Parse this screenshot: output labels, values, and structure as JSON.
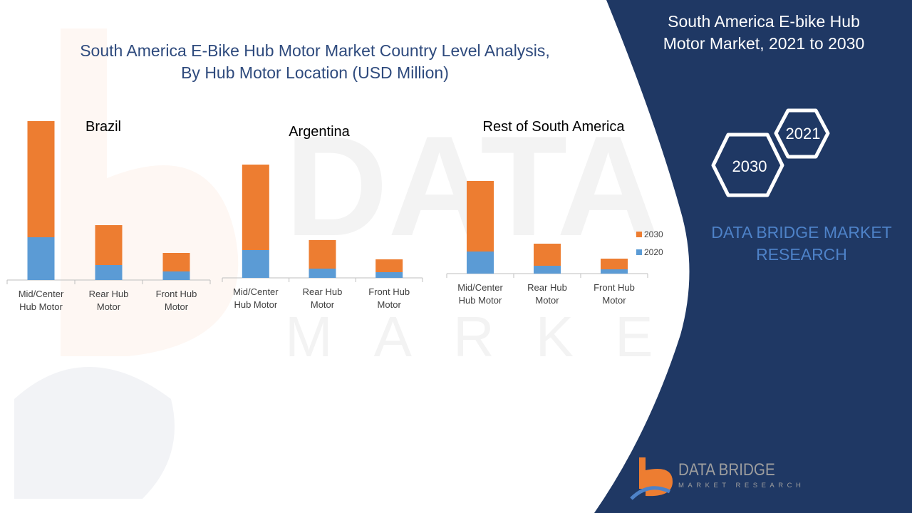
{
  "page": {
    "title_line1": "South America E-Bike Hub Motor Market Country Level Analysis,",
    "title_line2": "By Hub Motor Location (USD Million)",
    "side_title_line1": "South America E-bike Hub",
    "side_title_line2": "Motor Market, 2021 to 2030",
    "hex_labels": [
      "2021",
      "2030"
    ],
    "brand_line1": "DATA BRIDGE MARKET",
    "brand_line2": "RESEARCH",
    "logo_name": "DATA BRIDGE",
    "logo_sub": "MARKET RESEARCH"
  },
  "colors": {
    "series_2020": "#5B9BD5",
    "series_2030": "#ED7D31",
    "panel": "#1F3864",
    "title": "#2E4A7D",
    "axis": "#BFBFBF"
  },
  "chart_data": [
    {
      "type": "bar",
      "stacked": true,
      "title": "Brazil",
      "categories": [
        [
          "Mid/Center",
          "Hub Motor"
        ],
        [
          "Rear Hub",
          "Motor"
        ],
        [
          "Front Hub",
          "Motor"
        ]
      ],
      "series": [
        {
          "name": "2020",
          "values": [
            60,
            21,
            12
          ]
        },
        {
          "name": "2030",
          "values": [
            163,
            56,
            26
          ]
        }
      ],
      "ylim": [
        0,
        225
      ],
      "legend": "none"
    },
    {
      "type": "bar",
      "stacked": true,
      "title": "Argentina",
      "categories": [
        [
          "Mid/Center",
          "Hub Motor"
        ],
        [
          "Rear Hub",
          "Motor"
        ],
        [
          "Front Hub",
          "Motor"
        ]
      ],
      "series": [
        {
          "name": "2020",
          "values": [
            39,
            13,
            8
          ]
        },
        {
          "name": "2030",
          "values": [
            120,
            40,
            18
          ]
        }
      ],
      "ylim": [
        0,
        225
      ],
      "legend": "none"
    },
    {
      "type": "bar",
      "stacked": true,
      "title": "Rest of South America",
      "categories": [
        [
          "Mid/Center",
          "Hub Motor"
        ],
        [
          "Rear Hub",
          "Motor"
        ],
        [
          "Front Hub",
          "Motor"
        ]
      ],
      "series": [
        {
          "name": "2020",
          "values": [
            31,
            11,
            6
          ]
        },
        {
          "name": "2030",
          "values": [
            99,
            31,
            15
          ]
        }
      ],
      "ylim": [
        0,
        225
      ],
      "legend": "right"
    }
  ]
}
